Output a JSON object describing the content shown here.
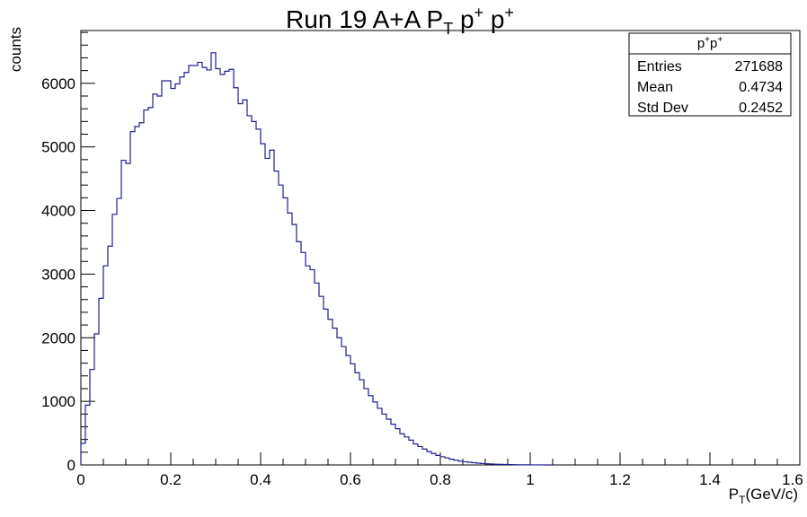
{
  "chart_data": {
    "type": "bar",
    "title_main": "Run 19 A+A P",
    "title_sub": "T",
    "title_tail": " p",
    "title_sup": "+",
    "title_tail2": " p",
    "title_sup2": "+",
    "xlabel_main": "P",
    "xlabel_sub": "T",
    "xlabel_tail": "(GeV/c)",
    "ylabel": "counts",
    "xlim": [
      0,
      1.6
    ],
    "ylim": [
      0,
      6830
    ],
    "bin_width": 0.01,
    "line_color": "#1f1f8f",
    "x_ticks": [
      {
        "v": 0,
        "label": "0"
      },
      {
        "v": 0.2,
        "label": "0.2"
      },
      {
        "v": 0.4,
        "label": "0.4"
      },
      {
        "v": 0.6,
        "label": "0.6"
      },
      {
        "v": 0.8,
        "label": "0.8"
      },
      {
        "v": 1.0,
        "label": "1"
      },
      {
        "v": 1.2,
        "label": "1.2"
      },
      {
        "v": 1.4,
        "label": "1.4"
      },
      {
        "v": 1.6,
        "label": "1.6"
      }
    ],
    "y_ticks": [
      {
        "v": 0,
        "label": "0"
      },
      {
        "v": 1000,
        "label": "1000"
      },
      {
        "v": 2000,
        "label": "2000"
      },
      {
        "v": 3000,
        "label": "3000"
      },
      {
        "v": 4000,
        "label": "4000"
      },
      {
        "v": 5000,
        "label": "5000"
      },
      {
        "v": 6000,
        "label": "6000"
      }
    ],
    "values": [
      340,
      940,
      1500,
      2060,
      2620,
      3130,
      3440,
      3940,
      4190,
      4790,
      4740,
      5240,
      5320,
      5380,
      5580,
      5620,
      5830,
      5800,
      6040,
      6040,
      5920,
      5990,
      6100,
      6170,
      6280,
      6280,
      6330,
      6250,
      6210,
      6480,
      6230,
      6140,
      6190,
      6220,
      5930,
      5680,
      5740,
      5490,
      5400,
      5280,
      5050,
      4820,
      4950,
      4620,
      4400,
      4200,
      3960,
      3780,
      3510,
      3340,
      3130,
      3070,
      2860,
      2650,
      2450,
      2290,
      2150,
      2000,
      1860,
      1720,
      1590,
      1450,
      1340,
      1200,
      1090,
      990,
      890,
      800,
      720,
      640,
      570,
      490,
      440,
      390,
      330,
      290,
      250,
      210,
      180,
      150,
      130,
      110,
      90,
      75,
      60,
      50,
      42,
      35,
      28,
      22,
      18,
      14,
      11,
      9,
      7,
      5,
      4,
      3,
      2,
      2,
      1,
      1,
      1,
      0,
      0
    ],
    "stats": {
      "title_main": "p",
      "title_sup": "+",
      "title_main2": "p",
      "title_sup2": "+",
      "rows": [
        {
          "label": "Entries",
          "value": "271688"
        },
        {
          "label": "Mean",
          "value": "0.4734"
        },
        {
          "label": "Std Dev",
          "value": "0.2452"
        }
      ]
    }
  }
}
